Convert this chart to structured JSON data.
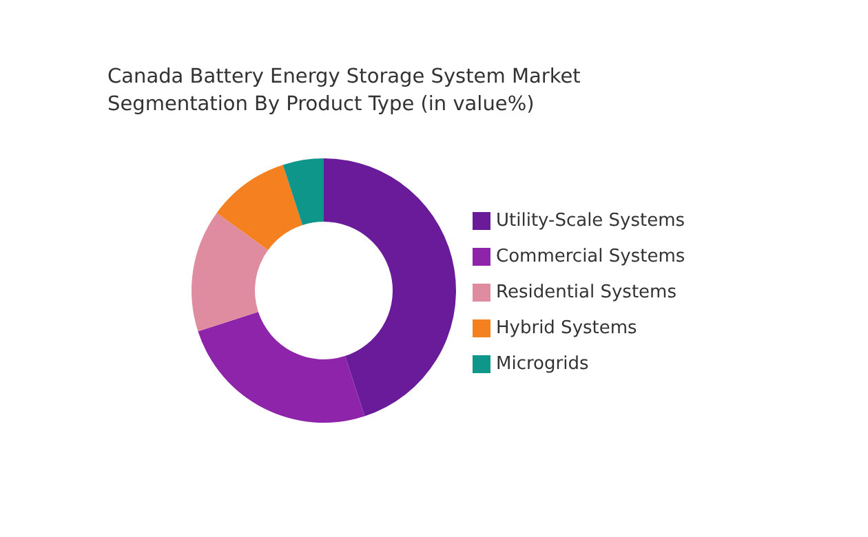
{
  "chart_data": {
    "type": "donut",
    "title": "Canada Battery Energy Storage System Market Segmentation By Product Type (in value%)",
    "categories": [
      "Utility-Scale Systems",
      "Commercial Systems",
      "Residential  Systems",
      "Hybrid  Systems",
      "Microgrids"
    ],
    "values": [
      45,
      25,
      15,
      10,
      5
    ],
    "colors": [
      "#6a1b9a",
      "#8e24aa",
      "#e08ca0",
      "#f5801f",
      "#0f968a"
    ],
    "legend": "right"
  }
}
